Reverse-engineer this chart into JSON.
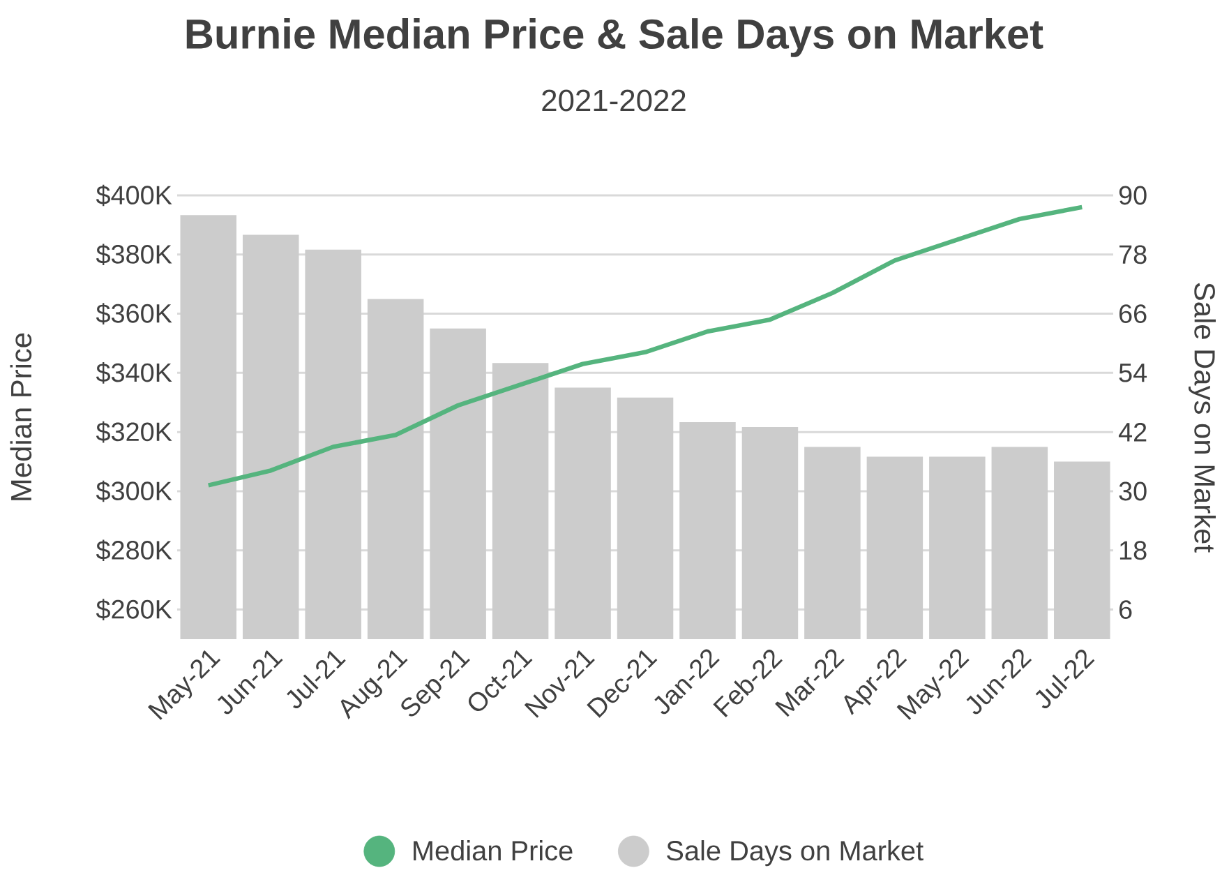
{
  "chart_data": {
    "type": "bar",
    "title": "Burnie Median Price & Sale Days on Market",
    "subtitle": "2021-2022",
    "ylabel": "Median Price",
    "y2label": "Sale Days on Market",
    "categories": [
      "May-21",
      "Jun-21",
      "Jul-21",
      "Aug-21",
      "Sep-21",
      "Oct-21",
      "Nov-21",
      "Dec-21",
      "Jan-22",
      "Feb-22",
      "Mar-22",
      "Apr-22",
      "May-22",
      "Jun-22",
      "Jul-22"
    ],
    "series": [
      {
        "name": "Median Price",
        "type": "line",
        "color": "#55b47e",
        "values": [
          302,
          307,
          315,
          319,
          329,
          336,
          343,
          347,
          354,
          358,
          367,
          378,
          385,
          392,
          396
        ]
      },
      {
        "name": "Sale Days on Market",
        "axis": "y2",
        "color": "#cccccc",
        "values": [
          86,
          82,
          79,
          69,
          63,
          56,
          51,
          49,
          44,
          43,
          39,
          37,
          37,
          39,
          36
        ]
      }
    ],
    "ylim": [
      250,
      400
    ],
    "yticks": [
      {
        "value": 260,
        "label": "$260K"
      },
      {
        "value": 280,
        "label": "$280K"
      },
      {
        "value": 300,
        "label": "$300K"
      },
      {
        "value": 320,
        "label": "$320K"
      },
      {
        "value": 340,
        "label": "$340K"
      },
      {
        "value": 360,
        "label": "$360K"
      },
      {
        "value": 380,
        "label": "$380K"
      },
      {
        "value": 400,
        "label": "$400K"
      }
    ],
    "y2lim": [
      0,
      90
    ],
    "y2ticks": [
      6,
      18,
      30,
      42,
      54,
      66,
      78,
      90
    ],
    "grid": "y",
    "legend": "bottom",
    "marker": "none",
    "line_style": "solid"
  }
}
